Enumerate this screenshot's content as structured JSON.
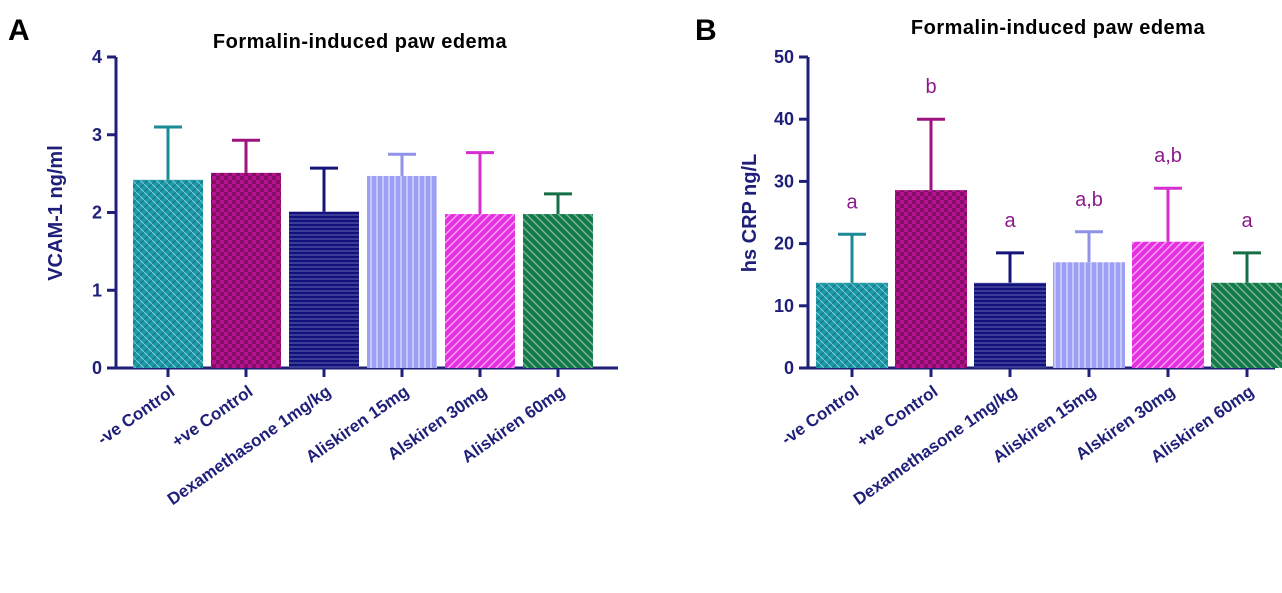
{
  "panels": [
    {
      "letter": "A",
      "chart_data": {
        "type": "bar",
        "title": "Formalin-induced paw edema",
        "xlabel": "",
        "ylabel": "VCAM-1 ng/ml",
        "ylim": [
          0,
          4
        ],
        "yticks": [
          0,
          1,
          2,
          3,
          4
        ],
        "categories": [
          "-ve Control",
          "+ve Control",
          "Dexamethasone 1mg/kg",
          "Aliskiren 15mg",
          "Alskiren 30mg",
          "Aliskiren 60mg"
        ],
        "values": [
          2.42,
          2.51,
          2.01,
          2.47,
          1.98,
          1.98
        ],
        "errors": [
          0.68,
          0.42,
          0.56,
          0.28,
          0.79,
          0.26
        ],
        "annotations": [
          "",
          "",
          "",
          "",
          "",
          ""
        ],
        "colors": [
          "#1a9aaa",
          "#b5128f",
          "#12127e",
          "#9d9ff5",
          "#e52fe0",
          "#137a4a"
        ],
        "error_colors": [
          "#1a8a95",
          "#9e1380",
          "#15157a",
          "#8f92e8",
          "#d52fd2",
          "#166e47"
        ],
        "patterns": [
          "crosshatch",
          "checker",
          "hlines",
          "vlines",
          "diag-right",
          "diag-left"
        ],
        "grid": false,
        "legend": "none"
      }
    },
    {
      "letter": "B",
      "chart_data": {
        "type": "bar",
        "title": "Formalin-induced paw edema",
        "xlabel": "",
        "ylabel": "hs CRP ng/L",
        "ylim": [
          0,
          50
        ],
        "yticks": [
          0,
          10,
          20,
          30,
          40,
          50
        ],
        "categories": [
          "-ve Control",
          "+ve Control",
          "Dexamethasone 1mg/kg",
          "Aliskiren 15mg",
          "Alskiren 30mg",
          "Aliskiren 60mg"
        ],
        "values": [
          13.7,
          28.6,
          13.7,
          17.0,
          20.3,
          13.7
        ],
        "errors": [
          7.8,
          11.4,
          4.8,
          4.9,
          8.6,
          4.8
        ],
        "annotations": [
          "a",
          "b",
          "a",
          "a,b",
          "a,b",
          "a"
        ],
        "colors": [
          "#1a9aaa",
          "#b5128f",
          "#12127e",
          "#9d9ff5",
          "#e52fe0",
          "#137a4a"
        ],
        "error_colors": [
          "#1a8a95",
          "#9e1380",
          "#15157a",
          "#8f92e8",
          "#d52fd2",
          "#166e47"
        ],
        "patterns": [
          "crosshatch",
          "checker",
          "hlines",
          "vlines",
          "diag-right",
          "diag-left"
        ],
        "grid": false,
        "legend": "none"
      }
    }
  ]
}
